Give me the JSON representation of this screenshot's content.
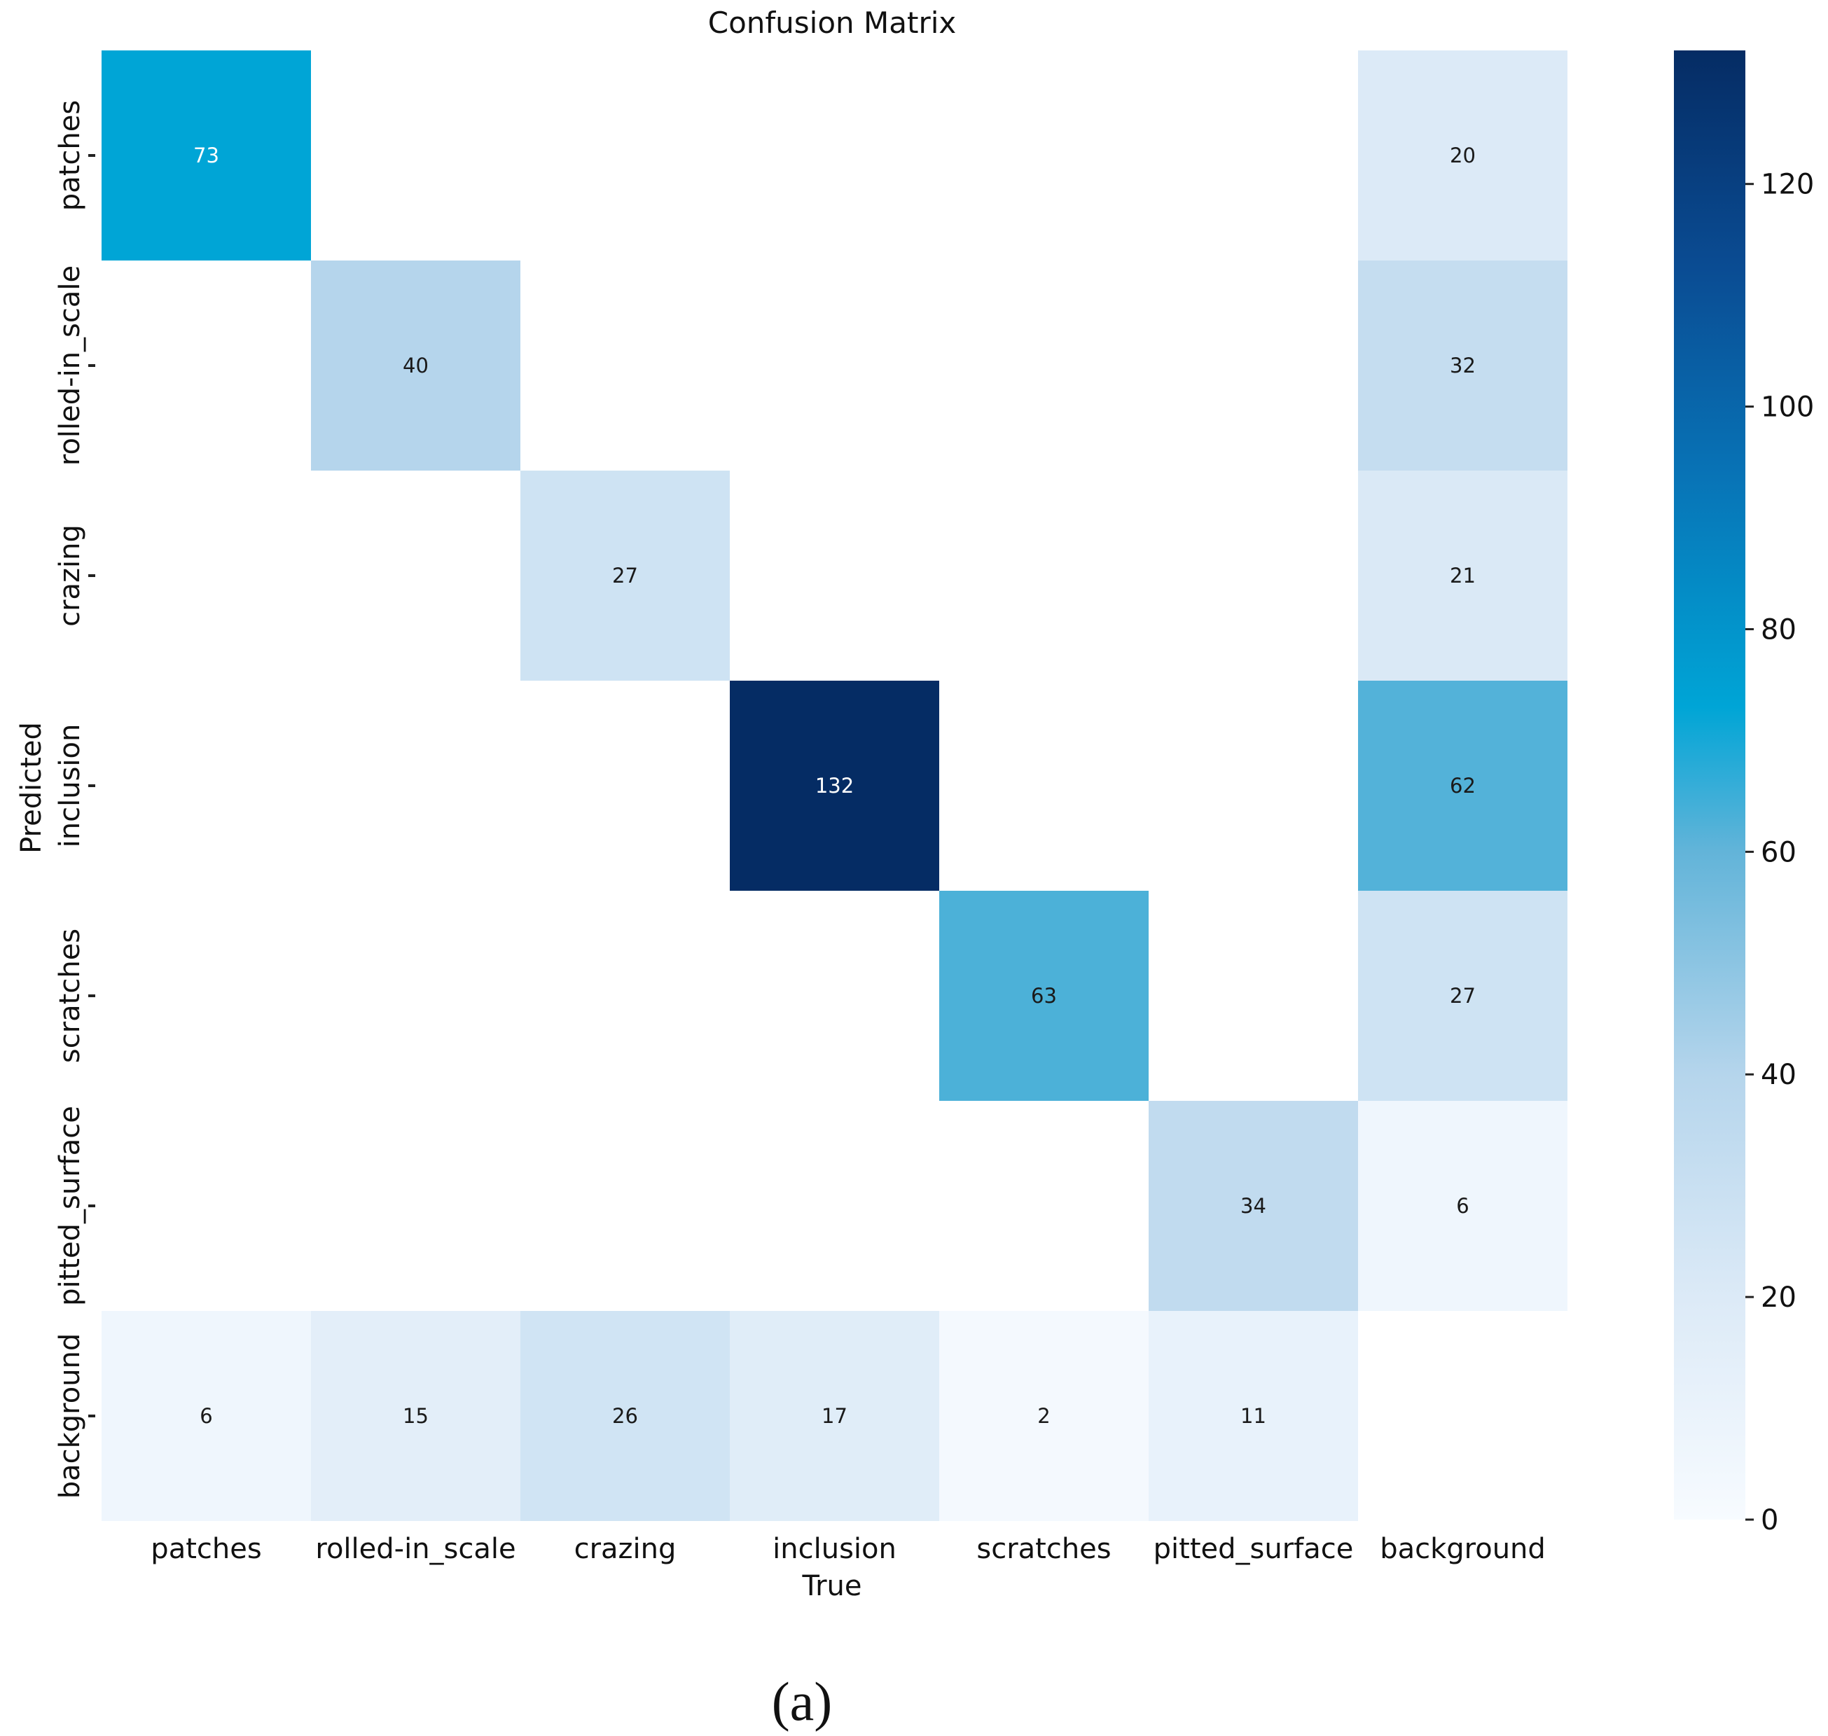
{
  "chart_data": {
    "type": "heatmap",
    "title": "Confusion Matrix",
    "xlabel": "True",
    "ylabel": "Predicted",
    "x_categories": [
      "patches",
      "rolled-in_scale",
      "crazing",
      "inclusion",
      "scratches",
      "pitted_surface",
      "background"
    ],
    "y_categories": [
      "patches",
      "rolled-in_scale",
      "crazing",
      "inclusion",
      "scratches",
      "pitted_surface",
      "background"
    ],
    "matrix": [
      [
        73,
        null,
        null,
        null,
        null,
        null,
        20
      ],
      [
        null,
        40,
        null,
        null,
        null,
        null,
        32
      ],
      [
        null,
        null,
        27,
        null,
        null,
        null,
        21
      ],
      [
        null,
        null,
        null,
        132,
        null,
        null,
        62
      ],
      [
        null,
        null,
        null,
        null,
        63,
        null,
        27
      ],
      [
        null,
        null,
        null,
        null,
        null,
        34,
        6
      ],
      [
        6,
        15,
        26,
        17,
        2,
        11,
        null
      ]
    ],
    "colorbar": {
      "colormap": "Blues",
      "range": [
        0,
        132
      ],
      "ticks": [
        0,
        20,
        40,
        60,
        80,
        100,
        120
      ]
    }
  },
  "caption": "(a)"
}
